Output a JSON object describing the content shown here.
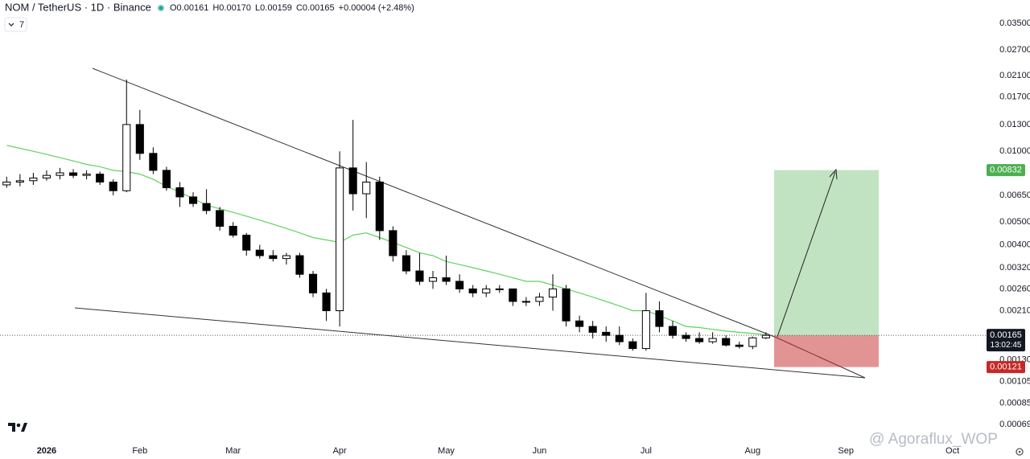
{
  "header": {
    "title": "NOM / TetherUS · 1D · Binance",
    "ohlc": [
      "O0.00161",
      "H0.00170",
      "L0.00159",
      "C0.00165",
      "+0.00004 (+2.48%)"
    ],
    "indicators_label": "7"
  },
  "watermark": "@ Agoraflux_WOP",
  "chart_data": {
    "type": "candlestick",
    "log_scale": true,
    "ylim": [
      0.00058,
      0.044
    ],
    "yticks": [
      {
        "value": 0.035,
        "label": "0.03500"
      },
      {
        "value": 0.027,
        "label": "0.02700"
      },
      {
        "value": 0.021,
        "label": "0.02100"
      },
      {
        "value": 0.017,
        "label": "0.01700"
      },
      {
        "value": 0.013,
        "label": "0.01300"
      },
      {
        "value": 0.01,
        "label": "0.01000"
      },
      {
        "value": 0.0065,
        "label": "0.00650"
      },
      {
        "value": 0.005,
        "label": "0.00500"
      },
      {
        "value": 0.004,
        "label": "0.00400"
      },
      {
        "value": 0.0032,
        "label": "0.00320"
      },
      {
        "value": 0.0026,
        "label": "0.00260"
      },
      {
        "value": 0.0021,
        "label": "0.00210"
      },
      {
        "value": 0.0013,
        "label": "0.00130"
      },
      {
        "value": 0.00105,
        "label": "0.00105"
      },
      {
        "value": 0.00085,
        "label": "0.00085"
      },
      {
        "value": 0.00069,
        "label": "0.00069"
      }
    ],
    "categories": [
      null,
      null,
      null,
      "2026",
      null,
      null,
      null,
      null,
      null,
      null,
      "Feb",
      null,
      null,
      null,
      null,
      null,
      null,
      "Mar",
      null,
      null,
      null,
      null,
      null,
      null,
      null,
      "Apr",
      null,
      null,
      null,
      null,
      null,
      null,
      null,
      "May",
      null,
      null,
      null,
      null,
      null,
      null,
      "Jun",
      null,
      null,
      null,
      null,
      null,
      null,
      null,
      "Jul",
      null,
      null,
      null,
      null,
      null,
      null,
      null,
      "Aug",
      null,
      null,
      null,
      null,
      null,
      null,
      "Sep",
      null,
      null,
      null,
      null,
      null,
      null,
      null,
      "Oct",
      null,
      null
    ],
    "up_color": "#ffffff",
    "down_color": "#000000",
    "wick_color": "#000000",
    "open": [
      0.0072,
      0.0074,
      0.0075,
      0.0077,
      0.0079,
      0.0081,
      0.0079,
      0.008,
      0.0074,
      0.0068,
      0.013,
      0.0098,
      0.0083,
      0.007,
      0.0064,
      0.006,
      0.0056,
      0.0048,
      0.0044,
      0.0038,
      0.0036,
      0.0035,
      0.0036,
      0.003,
      0.0025,
      0.0021,
      0.0085,
      0.0066,
      0.0074,
      0.0046,
      0.0036,
      0.0031,
      0.0028,
      0.0029,
      0.0028,
      0.0026,
      0.0025,
      0.0026,
      0.0026,
      0.0023,
      0.0023,
      0.0024,
      0.0026,
      0.0019,
      0.0018,
      0.0017,
      0.00165,
      0.00155,
      0.00145,
      0.0021,
      0.0018,
      0.00165,
      0.0016,
      0.00155,
      0.0016,
      0.0015,
      0.00148,
      0.00161,
      null,
      null,
      null,
      null,
      null,
      null,
      null,
      null,
      null,
      null,
      null,
      null,
      null,
      null,
      null,
      null
    ],
    "high": [
      0.0078,
      0.008,
      0.0081,
      0.0083,
      0.0085,
      0.0084,
      0.0083,
      0.0082,
      0.0076,
      0.0202,
      0.015,
      0.0104,
      0.0086,
      0.0074,
      0.0067,
      0.0069,
      0.0058,
      0.005,
      0.0045,
      0.004,
      0.0038,
      0.0037,
      0.0037,
      0.0031,
      0.0026,
      0.01,
      0.0136,
      0.009,
      0.0078,
      0.0048,
      0.0038,
      0.0037,
      0.0031,
      0.0036,
      0.003,
      0.0027,
      0.0027,
      0.0027,
      0.0026,
      0.0024,
      0.0025,
      0.003,
      0.0027,
      0.002,
      0.0019,
      0.0018,
      0.0018,
      0.0016,
      0.0025,
      0.0023,
      0.0019,
      0.0017,
      0.0017,
      0.0017,
      0.00165,
      0.00155,
      0.00163,
      0.0017,
      null,
      null,
      null,
      null,
      null,
      null,
      null,
      null,
      null,
      null,
      null,
      null,
      null,
      null,
      null,
      null
    ],
    "low": [
      0.007,
      0.0071,
      0.0072,
      0.0075,
      0.0076,
      0.0077,
      0.0076,
      0.0072,
      0.0065,
      0.0067,
      0.0092,
      0.008,
      0.0068,
      0.0058,
      0.0058,
      0.0054,
      0.0046,
      0.0043,
      0.0036,
      0.0035,
      0.0034,
      0.0033,
      0.0029,
      0.0024,
      0.0019,
      0.0018,
      0.0056,
      0.0052,
      0.0042,
      0.0034,
      0.003,
      0.0027,
      0.0026,
      0.0027,
      0.0025,
      0.0024,
      0.0024,
      0.0025,
      0.0022,
      0.0022,
      0.0022,
      0.0021,
      0.0018,
      0.0017,
      0.0016,
      0.00155,
      0.0015,
      0.00142,
      0.00142,
      0.0017,
      0.0016,
      0.00155,
      0.00152,
      0.00152,
      0.00148,
      0.00145,
      0.00144,
      0.00159,
      null,
      null,
      null,
      null,
      null,
      null,
      null,
      null,
      null,
      null,
      null,
      null,
      null,
      null,
      null,
      null
    ],
    "close": [
      0.0074,
      0.0075,
      0.0077,
      0.0079,
      0.0081,
      0.0079,
      0.008,
      0.0074,
      0.0068,
      0.013,
      0.0098,
      0.0083,
      0.007,
      0.0064,
      0.006,
      0.0056,
      0.0048,
      0.0044,
      0.0038,
      0.0036,
      0.0035,
      0.0036,
      0.003,
      0.0025,
      0.0021,
      0.0085,
      0.0066,
      0.0074,
      0.0046,
      0.0036,
      0.0031,
      0.0028,
      0.0029,
      0.0028,
      0.0026,
      0.0025,
      0.0026,
      0.0026,
      0.0023,
      0.0023,
      0.0024,
      0.0026,
      0.0019,
      0.0018,
      0.0017,
      0.00165,
      0.00155,
      0.00145,
      0.0021,
      0.0018,
      0.00165,
      0.0016,
      0.00155,
      0.0016,
      0.0015,
      0.00148,
      0.00161,
      0.00165,
      null,
      null,
      null,
      null,
      null,
      null,
      null,
      null,
      null,
      null,
      null,
      null,
      null,
      null,
      null,
      null
    ],
    "ma": {
      "color": "#5fd35f",
      "values": [
        0.0106,
        0.0103,
        0.01,
        0.0097,
        0.0094,
        0.0091,
        0.0088,
        0.0086,
        0.0083,
        0.0082,
        0.008,
        0.0076,
        0.0071,
        0.0067,
        0.0063,
        0.0059,
        0.0057,
        0.0055,
        0.0053,
        0.0051,
        0.0049,
        0.0047,
        0.0045,
        0.0043,
        0.0042,
        0.0041,
        0.0044,
        0.0045,
        0.0043,
        0.0041,
        0.0039,
        0.0037,
        0.0036,
        0.0034,
        0.0033,
        0.0032,
        0.0031,
        0.003,
        0.0029,
        0.0028,
        0.0028,
        0.0027,
        0.0026,
        0.0025,
        0.0024,
        0.0023,
        0.0022,
        0.0021,
        0.0021,
        0.002,
        0.0019,
        0.0018,
        0.00178,
        0.00175,
        0.00172,
        0.0017,
        0.00168,
        0.00166,
        null,
        null,
        null,
        null,
        null,
        null,
        null,
        null,
        null,
        null,
        null,
        null,
        null,
        null,
        null,
        null
      ]
    },
    "position": {
      "entry": {
        "value": 0.00165,
        "label": "0.00165"
      },
      "countdown": "13:02:45",
      "target": {
        "value": 0.00832,
        "label": "0.00832",
        "color": "#4caf50"
      },
      "stop": {
        "value": 0.00121,
        "label": "0.00121",
        "color": "#c62828"
      }
    }
  }
}
